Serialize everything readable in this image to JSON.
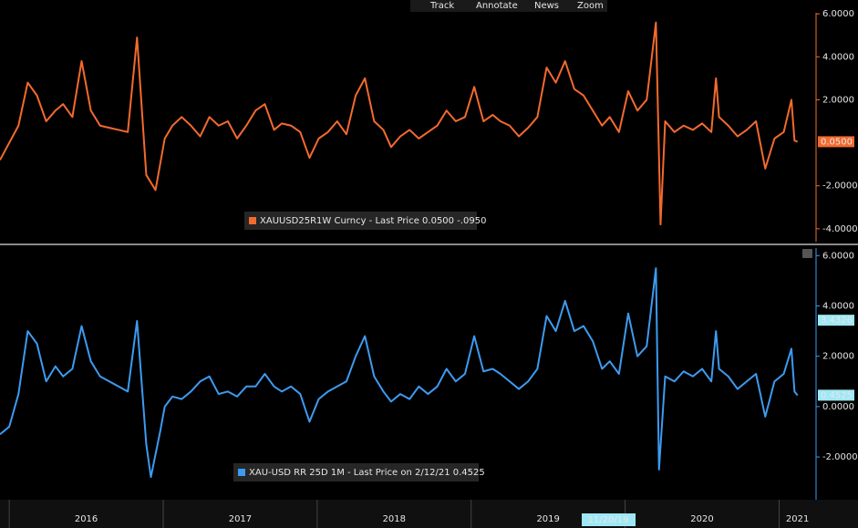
{
  "toolbar": [
    "Track",
    "Annotate",
    "News",
    "Zoom"
  ],
  "chart_data": [
    {
      "type": "line",
      "x": [
        2015.94,
        2016.0,
        2016.06,
        2016.12,
        2016.18,
        2016.24,
        2016.3,
        2016.35,
        2016.41,
        2016.47,
        2016.53,
        2016.59,
        2016.65,
        2016.71,
        2016.77,
        2016.83,
        2016.89,
        2016.95,
        2017.01,
        2017.06,
        2017.12,
        2017.18,
        2017.24,
        2017.3,
        2017.36,
        2017.42,
        2017.48,
        2017.54,
        2017.6,
        2017.66,
        2017.72,
        2017.77,
        2017.83,
        2017.89,
        2017.95,
        2018.01,
        2018.07,
        2018.13,
        2018.19,
        2018.25,
        2018.31,
        2018.37,
        2018.43,
        2018.48,
        2018.54,
        2018.6,
        2018.66,
        2018.72,
        2018.78,
        2018.84,
        2018.9,
        2018.96,
        2019.02,
        2019.08,
        2019.14,
        2019.19,
        2019.25,
        2019.31,
        2019.37,
        2019.43,
        2019.49,
        2019.55,
        2019.61,
        2019.67,
        2019.73,
        2019.79,
        2019.85,
        2019.9,
        2019.96,
        2020.02,
        2020.08,
        2020.14,
        2020.2,
        2020.23,
        2020.26,
        2020.32,
        2020.38,
        2020.44,
        2020.5,
        2020.56,
        2020.59,
        2020.61,
        2020.67,
        2020.73,
        2020.79,
        2020.85,
        2020.91,
        2020.97,
        2021.03,
        2021.08,
        2021.1,
        2021.12
      ],
      "series": [
        {
          "name": "XAUUSD25R1W Curncy - Last Price 0.0500  -.0950",
          "color": "#f36a2e",
          "values": [
            -0.8,
            0.0,
            0.8,
            2.8,
            2.2,
            1.0,
            1.5,
            1.8,
            1.2,
            3.8,
            1.5,
            0.8,
            0.7,
            0.6,
            0.5,
            4.9,
            -1.5,
            -2.2,
            0.2,
            0.8,
            1.2,
            0.8,
            0.3,
            1.2,
            0.8,
            1.0,
            0.2,
            0.8,
            1.5,
            1.8,
            0.6,
            0.9,
            0.8,
            0.5,
            -0.7,
            0.2,
            0.5,
            1.0,
            0.4,
            2.2,
            3.0,
            1.0,
            0.6,
            -0.2,
            0.3,
            0.6,
            0.2,
            0.5,
            0.8,
            1.5,
            1.0,
            1.2,
            2.6,
            1.0,
            1.3,
            1.0,
            0.8,
            0.3,
            0.7,
            1.2,
            3.5,
            2.8,
            3.8,
            2.5,
            2.2,
            1.5,
            0.8,
            1.2,
            0.5,
            2.4,
            1.5,
            2.0,
            5.6,
            -3.8,
            1.0,
            0.5,
            0.8,
            0.6,
            0.9,
            0.5,
            3.0,
            1.2,
            0.8,
            0.3,
            0.6,
            1.0,
            -1.2,
            0.2,
            0.5,
            2.0,
            0.1,
            0.05
          ]
        }
      ],
      "xlim": [
        2015.94,
        2021.24
      ],
      "ylim": [
        -4.6,
        6.05
      ],
      "yticks": [
        {
          "value": 6,
          "label": "6.0000"
        },
        {
          "value": 4,
          "label": "4.0000"
        },
        {
          "value": 2,
          "label": "2.0000"
        },
        {
          "value": -2,
          "label": "-2.0000"
        },
        {
          "value": -4,
          "label": "-4.0000"
        }
      ],
      "markers": [
        {
          "value": 0.05,
          "label": "0.0500",
          "color": "#f36a2e"
        }
      ]
    },
    {
      "type": "line",
      "x": [
        2015.94,
        2016.0,
        2016.06,
        2016.12,
        2016.18,
        2016.24,
        2016.3,
        2016.35,
        2016.41,
        2016.47,
        2016.53,
        2016.59,
        2016.65,
        2016.71,
        2016.77,
        2016.83,
        2016.89,
        2016.92,
        2016.98,
        2017.01,
        2017.06,
        2017.12,
        2017.18,
        2017.24,
        2017.3,
        2017.36,
        2017.42,
        2017.48,
        2017.54,
        2017.6,
        2017.66,
        2017.72,
        2017.77,
        2017.83,
        2017.89,
        2017.95,
        2018.01,
        2018.07,
        2018.13,
        2018.19,
        2018.25,
        2018.31,
        2018.37,
        2018.43,
        2018.48,
        2018.54,
        2018.6,
        2018.66,
        2018.72,
        2018.78,
        2018.84,
        2018.9,
        2018.96,
        2019.02,
        2019.08,
        2019.14,
        2019.19,
        2019.25,
        2019.31,
        2019.37,
        2019.43,
        2019.49,
        2019.55,
        2019.61,
        2019.67,
        2019.73,
        2019.79,
        2019.85,
        2019.9,
        2019.96,
        2020.02,
        2020.08,
        2020.14,
        2020.2,
        2020.22,
        2020.26,
        2020.32,
        2020.38,
        2020.44,
        2020.5,
        2020.56,
        2020.59,
        2020.61,
        2020.67,
        2020.73,
        2020.79,
        2020.85,
        2020.91,
        2020.97,
        2021.03,
        2021.08,
        2021.1,
        2021.12
      ],
      "series": [
        {
          "name": "XAU-USD RR 25D 1M - Last Price on 2/12/21 0.4525",
          "color": "#3d9bf0",
          "values": [
            -1.1,
            -0.8,
            0.5,
            3.0,
            2.5,
            1.0,
            1.6,
            1.2,
            1.5,
            3.2,
            1.8,
            1.2,
            1.0,
            0.8,
            0.6,
            3.4,
            -1.5,
            -2.8,
            -1.0,
            0.0,
            0.4,
            0.3,
            0.6,
            1.0,
            1.2,
            0.5,
            0.6,
            0.4,
            0.8,
            0.8,
            1.3,
            0.8,
            0.6,
            0.8,
            0.5,
            -0.6,
            0.3,
            0.6,
            0.8,
            1.0,
            2.0,
            2.8,
            1.2,
            0.6,
            0.2,
            0.5,
            0.3,
            0.8,
            0.5,
            0.8,
            1.5,
            1.0,
            1.3,
            2.8,
            1.4,
            1.5,
            1.3,
            1.0,
            0.7,
            1.0,
            1.5,
            3.6,
            3.0,
            4.2,
            3.0,
            3.2,
            2.6,
            1.5,
            1.8,
            1.3,
            3.7,
            2.0,
            2.4,
            5.5,
            -2.5,
            1.2,
            1.0,
            1.4,
            1.2,
            1.5,
            1.0,
            3.0,
            1.5,
            1.2,
            0.7,
            1.0,
            1.3,
            -0.4,
            1.0,
            1.3,
            2.3,
            0.6,
            0.45
          ]
        }
      ],
      "xlim": [
        2015.94,
        2021.24
      ],
      "ylim": [
        -3.7,
        6.3
      ],
      "yticks": [
        {
          "value": 6,
          "label": "6.0000"
        },
        {
          "value": 4,
          "label": "4.0000"
        },
        {
          "value": 2,
          "label": "2.0000"
        },
        {
          "value": 0,
          "label": "0.0000"
        },
        {
          "value": -2,
          "label": "-2.0000"
        }
      ],
      "markers": [
        {
          "value": 3.4326,
          "label": "3.4326",
          "color": "#9ee8f5"
        },
        {
          "value": 0.4525,
          "label": "0.4525",
          "color": "#9ee8f5"
        }
      ],
      "xticks": [
        {
          "value": 2016,
          "label": "2016"
        },
        {
          "value": 2017,
          "label": "2017"
        },
        {
          "value": 2018,
          "label": "2018"
        },
        {
          "value": 2019,
          "label": "2019"
        },
        {
          "value": 2020,
          "label": "2020"
        },
        {
          "value": 2021,
          "label": "2021"
        }
      ],
      "annotation": {
        "x": 2019.89,
        "label": "11/20/19"
      }
    }
  ]
}
